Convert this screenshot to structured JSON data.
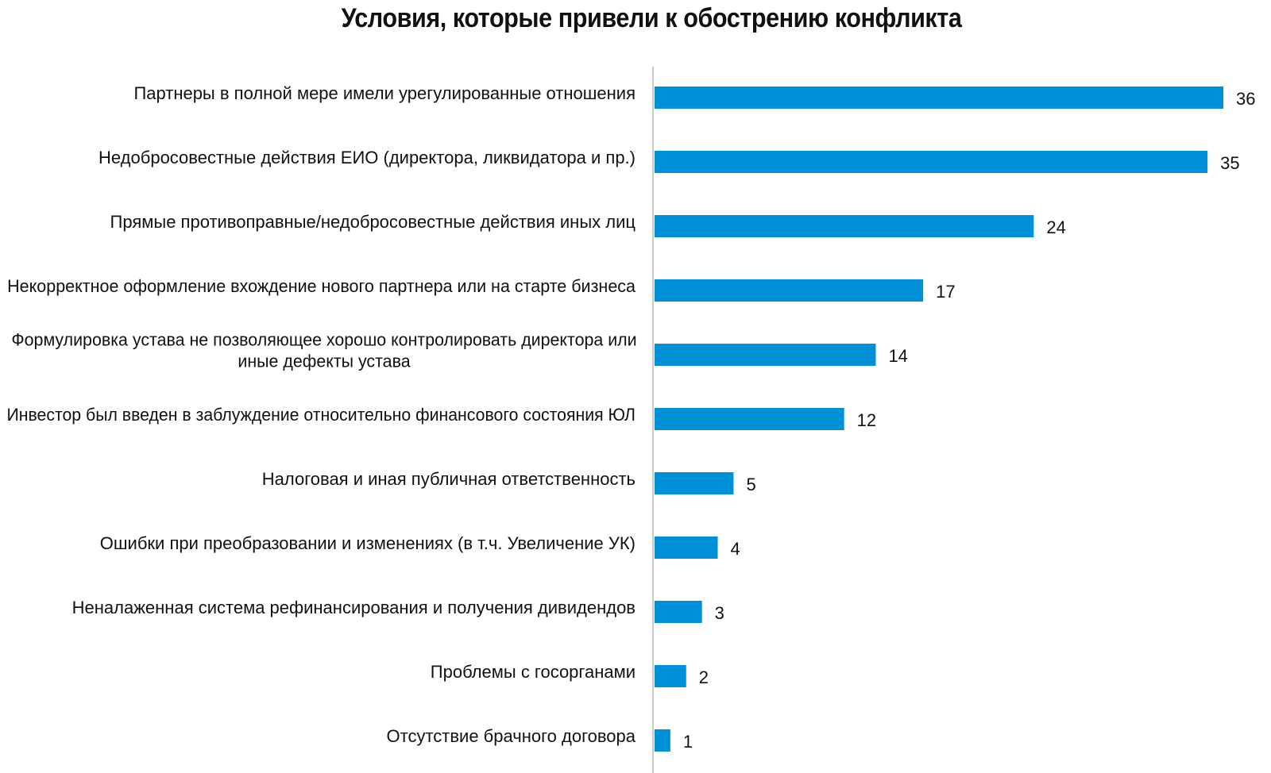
{
  "chart_data": {
    "type": "bar",
    "orientation": "horizontal",
    "title": "Условия, которые привели к обострению конфликта",
    "categories": [
      [
        "Партнеры в полной мере имели урегулированные отношения"
      ],
      [
        "Недобросовестные действия ЕИО (директора, ликвидатора и пр.)"
      ],
      [
        "Прямые противоправные/недобросовестные действия иных лиц"
      ],
      [
        "Некорректное оформление вхождение нового партнера или на старте бизнеса"
      ],
      [
        "Формулировка устава не позволяющее хорошо контролировать директора или",
        "иные дефекты устава"
      ],
      [
        "Инвестор был введен в заблуждение относительно финансового состояния ЮЛ"
      ],
      [
        "Налоговая и иная публичная ответственность"
      ],
      [
        "Ошибки при преобразовании и изменениях (в т.ч. Увеличение УК)"
      ],
      [
        "Неналаженная система рефинансирования и получения дивидендов"
      ],
      [
        "Проблемы с госорганами"
      ],
      [
        "Отсутствие брачного договора"
      ]
    ],
    "values": [
      36,
      35,
      24,
      17,
      14,
      12,
      5,
      4,
      3,
      2,
      1
    ],
    "xlim": [
      0,
      36
    ],
    "grid": false,
    "legend": "none",
    "bar_color": "#0090D8",
    "axis_color": "#c8c8c8"
  }
}
